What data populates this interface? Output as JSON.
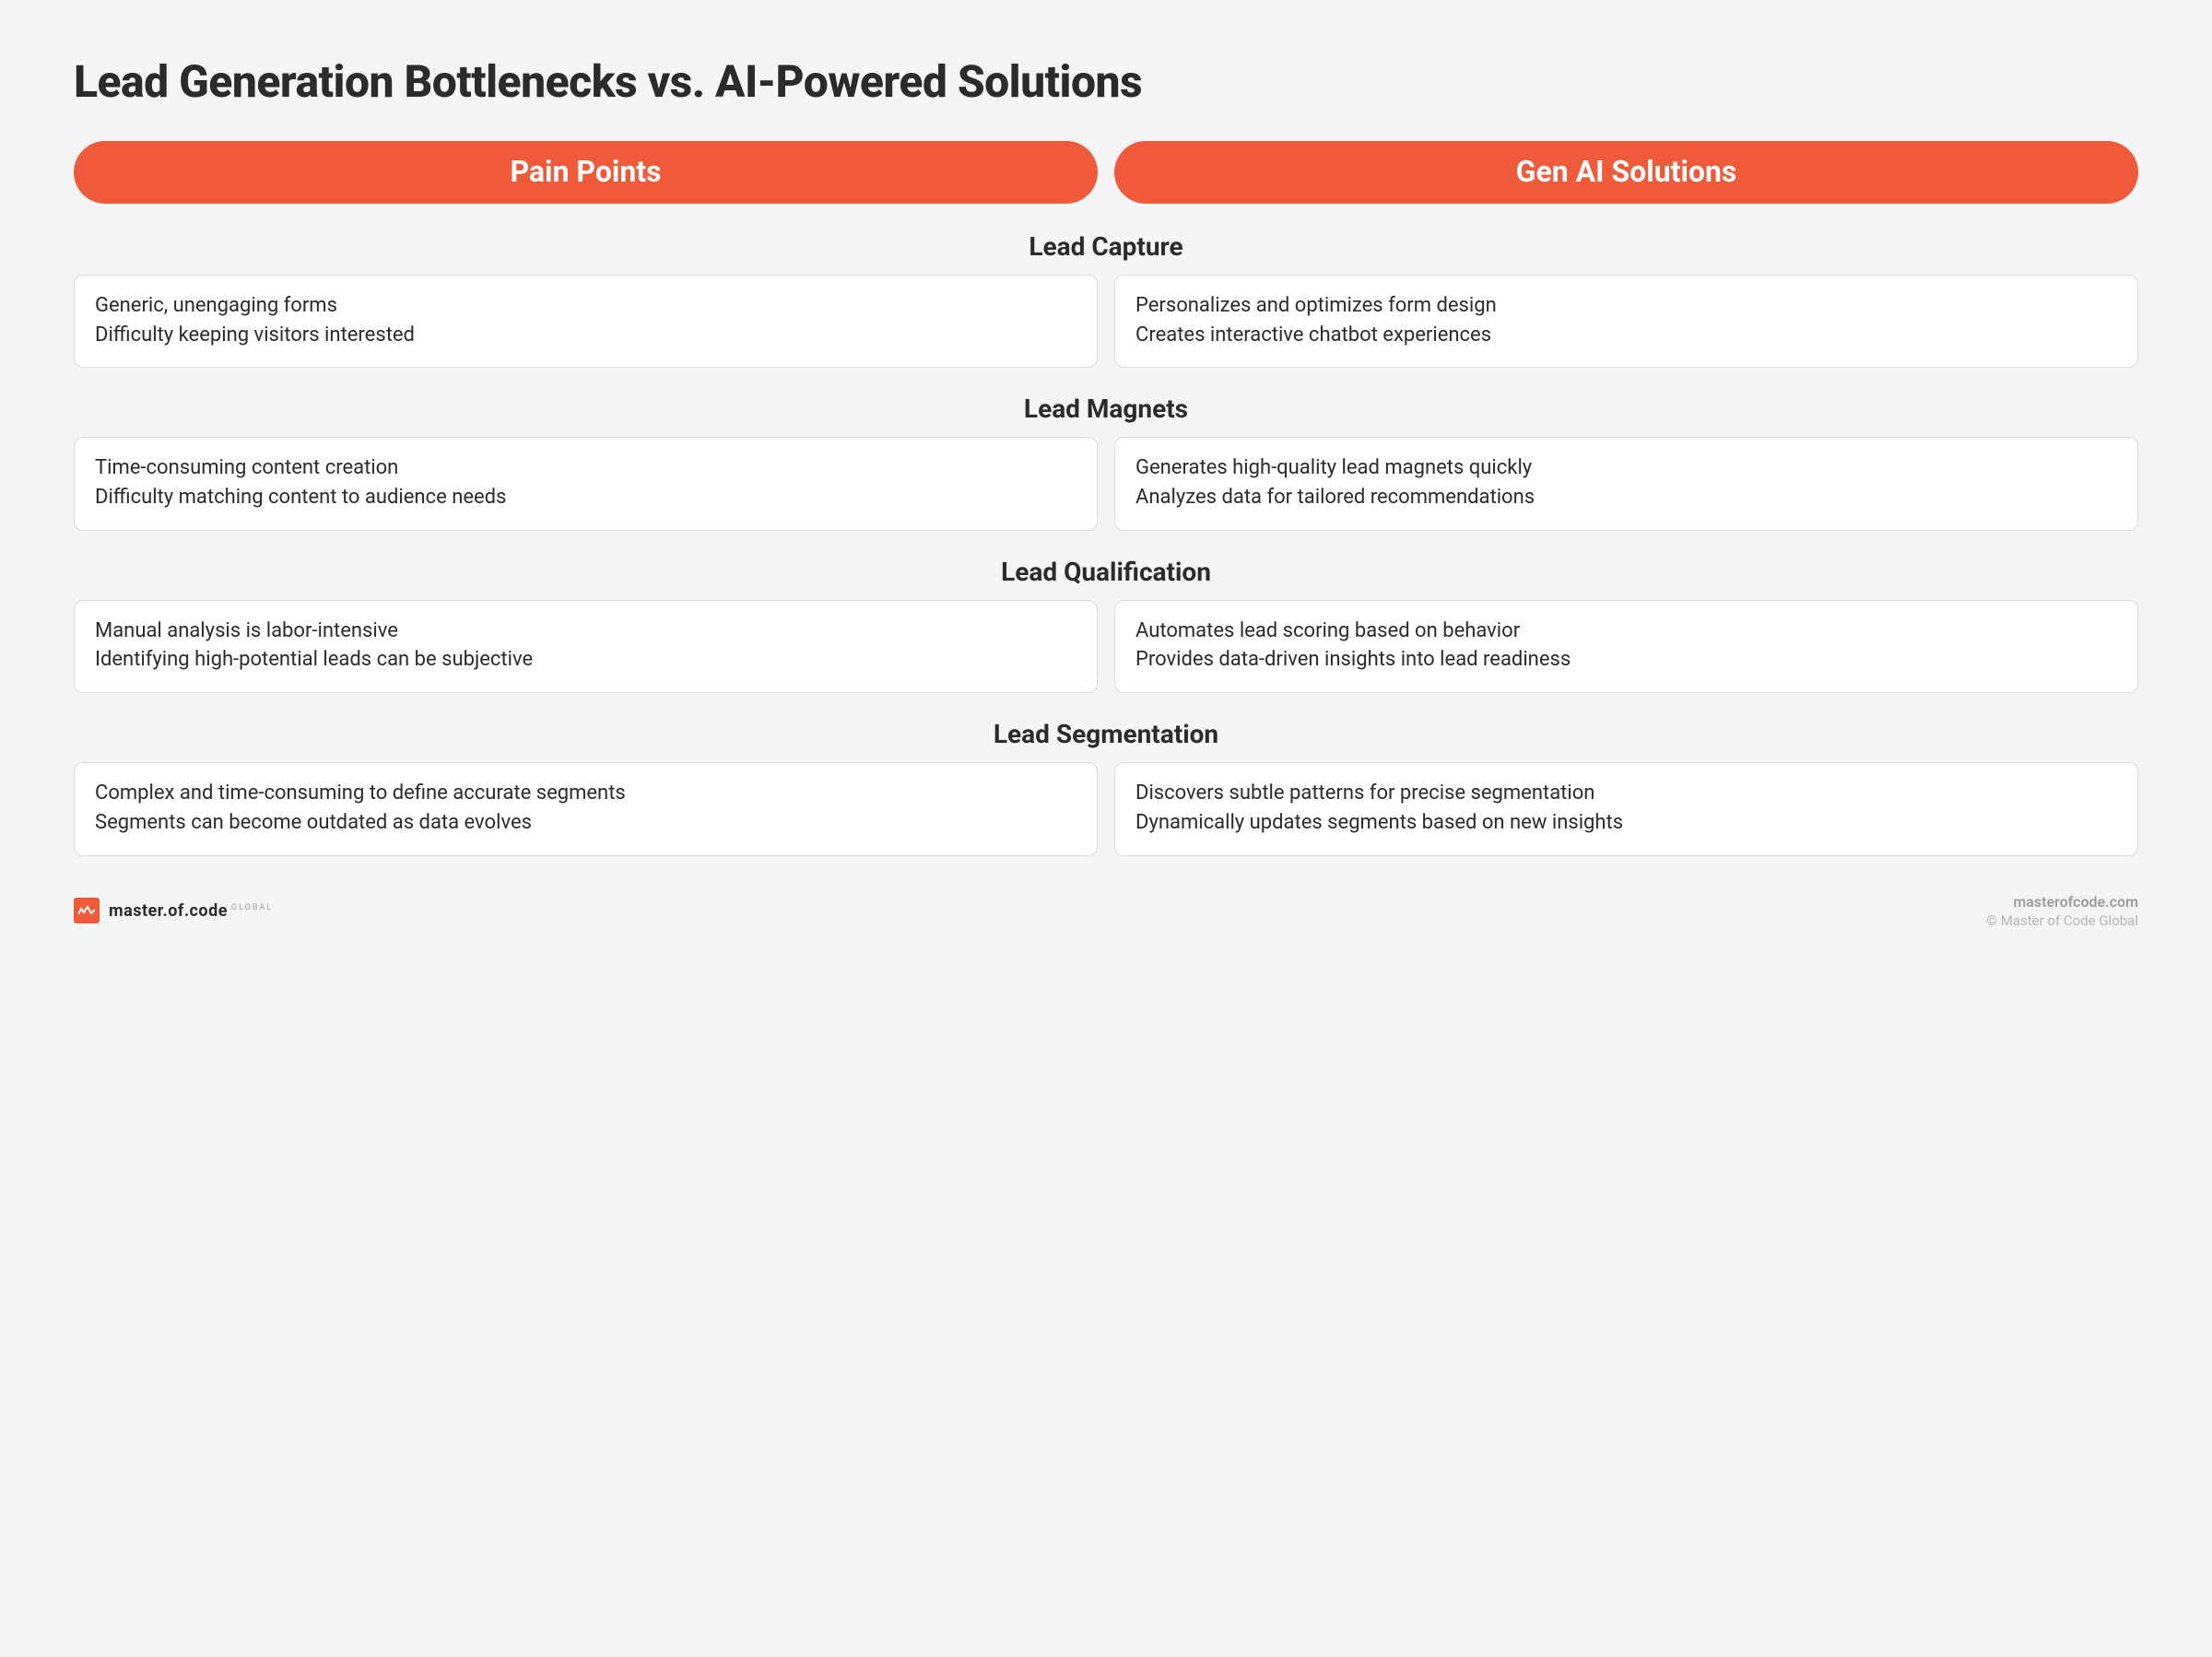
{
  "title": "Lead Generation Bottlenecks vs. AI-Powered Solutions",
  "columns": {
    "left": "Pain Points",
    "right": "Gen AI Solutions"
  },
  "styling": {
    "background_color": "#f5f5f5",
    "pill_background": "#ee5a3a",
    "pill_text_color": "#ffffff",
    "card_background": "#ffffff",
    "card_border_color": "#dcdcdc",
    "text_color": "#2b2b2b",
    "title_fontsize": 48,
    "pill_fontsize": 32,
    "section_title_fontsize": 28,
    "body_fontsize": 22,
    "pill_border_radius": 999,
    "card_border_radius": 10,
    "column_gap": 18
  },
  "sections": [
    {
      "heading": "Lead Capture",
      "pain": [
        "Generic, unengaging forms",
        "Difficulty keeping visitors interested"
      ],
      "solution": [
        "Personalizes and optimizes form design",
        "Creates interactive chatbot experiences"
      ]
    },
    {
      "heading": "Lead Magnets",
      "pain": [
        "Time-consuming content creation",
        "Difficulty matching content to audience needs"
      ],
      "solution": [
        "Generates high-quality lead magnets quickly",
        "Analyzes data for tailored recommendations"
      ]
    },
    {
      "heading": "Lead Qualification",
      "pain": [
        "Manual analysis is labor-intensive",
        "Identifying high-potential leads can be subjective"
      ],
      "solution": [
        "Automates lead scoring based on behavior",
        "Provides data-driven insights into lead readiness"
      ]
    },
    {
      "heading": "Lead Segmentation",
      "pain": [
        "Complex and time-consuming to define accurate segments",
        "Segments can become outdated as data evolves"
      ],
      "solution": [
        "Discovers subtle patterns for precise segmentation",
        "Dynamically updates segments based on new insights"
      ]
    }
  ],
  "footer": {
    "brand": "master.of.code",
    "brand_sub": "GLOBAL",
    "site": "masterofcode.com",
    "copyright": "© Master of Code Global",
    "logo_color": "#ee5a3a"
  }
}
